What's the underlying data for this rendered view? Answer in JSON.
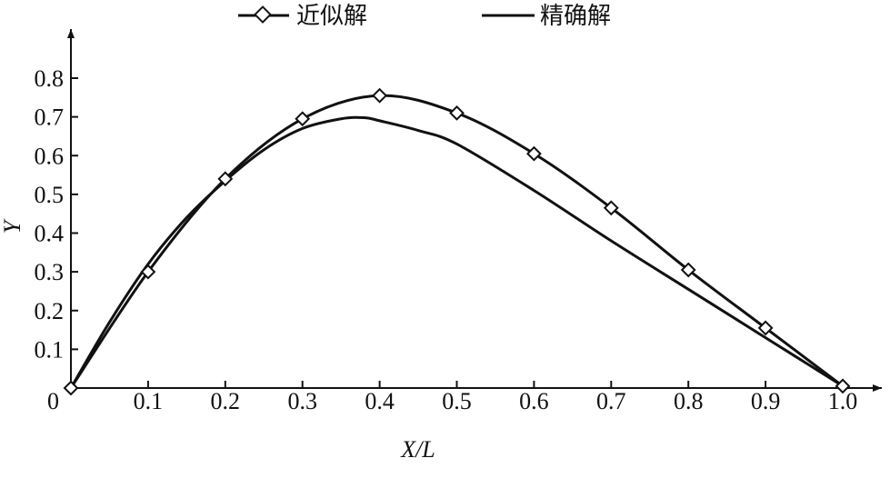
{
  "chart_data": {
    "type": "line",
    "xlabel": "X/L",
    "ylabel": "Y",
    "xlim": [
      0,
      1.0
    ],
    "ylim": [
      0,
      0.8
    ],
    "x_ticks": [
      "0.1",
      "0.2",
      "0.3",
      "0.4",
      "0.5",
      "0.6",
      "0.7",
      "0.8",
      "0.9",
      "1.0"
    ],
    "y_ticks": [
      "0.1",
      "0.2",
      "0.3",
      "0.4",
      "0.5",
      "0.6",
      "0.7",
      "0.8"
    ],
    "origin_label": "0",
    "grid": false,
    "legend_position": "top",
    "series": [
      {
        "name": "近似解",
        "marker": "diamond",
        "x": [
          0,
          0.1,
          0.2,
          0.3,
          0.4,
          0.5,
          0.6,
          0.7,
          0.8,
          0.9,
          1.0
        ],
        "values": [
          0,
          0.3,
          0.54,
          0.695,
          0.755,
          0.71,
          0.605,
          0.465,
          0.305,
          0.155,
          0.005
        ]
      },
      {
        "name": "精确解",
        "marker": "none",
        "x": [
          0,
          0.05,
          0.1,
          0.15,
          0.2,
          0.25,
          0.3,
          0.35,
          0.38,
          0.4,
          0.45,
          0.5,
          0.6,
          0.7,
          0.8,
          0.9,
          1.0
        ],
        "values": [
          0,
          0.17,
          0.32,
          0.44,
          0.535,
          0.615,
          0.67,
          0.695,
          0.698,
          0.69,
          0.665,
          0.63,
          0.51,
          0.38,
          0.255,
          0.13,
          0.005
        ]
      }
    ]
  }
}
